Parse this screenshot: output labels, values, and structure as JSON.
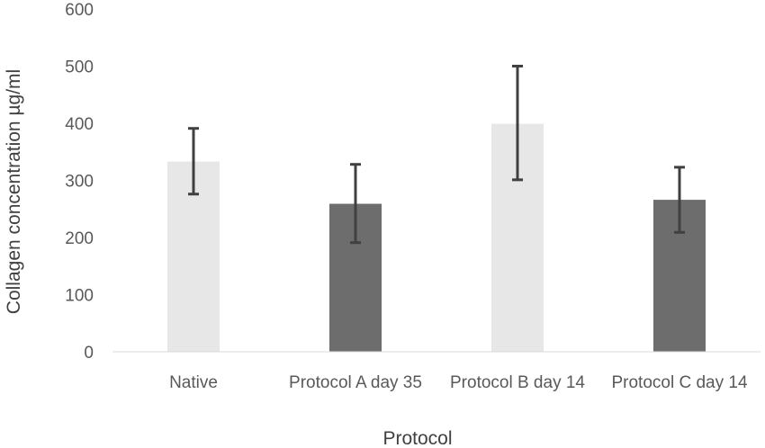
{
  "chart_data": {
    "type": "bar",
    "title": "",
    "xlabel": "Protocol",
    "ylabel": "Collagen concentration µg/ml",
    "ylim": [
      0,
      600
    ],
    "yticks": [
      "0",
      "100",
      "200",
      "300",
      "400",
      "500",
      "600"
    ],
    "ytick_values": [
      0,
      100,
      200,
      300,
      400,
      500,
      600
    ],
    "categories": [
      "Native",
      "Protocol A day 35",
      "Protocol B day 14",
      "Protocol C day 14"
    ],
    "values": [
      333,
      259,
      399,
      266
    ],
    "error_low": [
      276,
      191,
      301,
      209
    ],
    "error_high": [
      391,
      328,
      500,
      323
    ],
    "bar_colors": [
      "#e7e7e7",
      "#6d6d6d",
      "#e7e7e7",
      "#6d6d6d"
    ],
    "error_bar_color": "#404040",
    "grid": false,
    "legend": "none"
  }
}
